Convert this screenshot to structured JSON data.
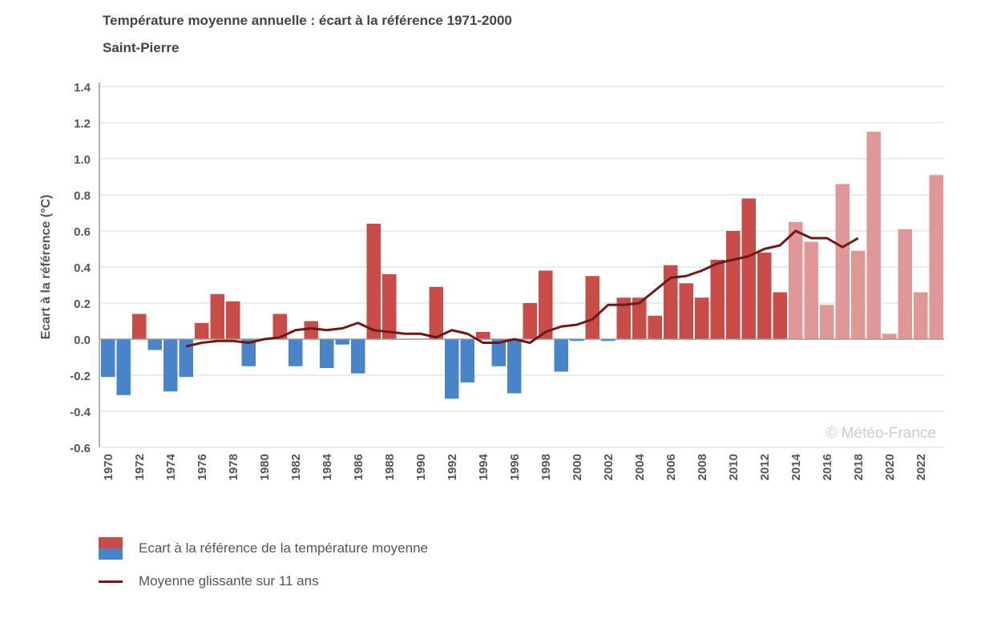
{
  "chart_data": {
    "type": "bar",
    "title": "Température moyenne annuelle : écart à la référence 1971-2000",
    "subtitle": "Saint-Pierre",
    "ylabel": "Ecart à la référence (°C)",
    "xlabel": "",
    "ylim": [
      -0.6,
      1.4
    ],
    "yticks": [
      "-0.6",
      "-0.4",
      "-0.2",
      "0.0",
      "0.2",
      "0.4",
      "0.6",
      "0.8",
      "1.0",
      "1.2",
      "1.4"
    ],
    "grid": true,
    "legend_position": "bottom",
    "watermark": "© Météo-France",
    "x": [
      1970,
      1971,
      1972,
      1973,
      1974,
      1975,
      1976,
      1977,
      1978,
      1979,
      1980,
      1981,
      1982,
      1983,
      1984,
      1985,
      1986,
      1987,
      1988,
      1989,
      1990,
      1991,
      1992,
      1993,
      1994,
      1995,
      1996,
      1997,
      1998,
      1999,
      2000,
      2001,
      2002,
      2003,
      2004,
      2005,
      2006,
      2007,
      2008,
      2009,
      2010,
      2011,
      2012,
      2013,
      2014,
      2015,
      2016,
      2017,
      2018,
      2019,
      2020,
      2021,
      2022,
      2023
    ],
    "series": [
      {
        "name": "Ecart à la référence de la température moyenne",
        "type": "bar",
        "values": [
          -0.21,
          -0.31,
          0.14,
          -0.06,
          -0.29,
          -0.21,
          0.09,
          0.25,
          0.21,
          -0.15,
          0.0,
          0.14,
          -0.15,
          0.1,
          -0.16,
          -0.03,
          -0.19,
          0.64,
          0.36,
          0.0,
          0.0,
          0.29,
          -0.33,
          -0.24,
          0.04,
          -0.15,
          -0.3,
          0.2,
          0.38,
          -0.18,
          -0.01,
          0.35,
          -0.01,
          0.23,
          0.23,
          0.13,
          0.41,
          0.31,
          0.23,
          0.44,
          0.6,
          0.78,
          0.48,
          0.26,
          0.65,
          0.54,
          0.19,
          0.86,
          0.49,
          1.15,
          0.03,
          0.61,
          0.26,
          0.91
        ]
      },
      {
        "name": "Moyenne glissante sur 11 ans",
        "type": "line",
        "x": [
          1975,
          1976,
          1977,
          1978,
          1979,
          1980,
          1981,
          1982,
          1983,
          1984,
          1985,
          1986,
          1987,
          1988,
          1989,
          1990,
          1991,
          1992,
          1993,
          1994,
          1995,
          1996,
          1997,
          1998,
          1999,
          2000,
          2001,
          2002,
          2003,
          2004,
          2005,
          2006,
          2007,
          2008,
          2009,
          2010,
          2011,
          2012,
          2013,
          2014,
          2015,
          2016,
          2017,
          2018
        ],
        "values": [
          -0.04,
          -0.02,
          -0.01,
          -0.01,
          -0.02,
          0.0,
          0.01,
          0.05,
          0.06,
          0.05,
          0.06,
          0.09,
          0.05,
          0.04,
          0.03,
          0.03,
          0.01,
          0.05,
          0.03,
          -0.02,
          -0.02,
          0.0,
          -0.02,
          0.04,
          0.07,
          0.08,
          0.11,
          0.19,
          0.19,
          0.2,
          0.27,
          0.34,
          0.35,
          0.38,
          0.42,
          0.44,
          0.46,
          0.5,
          0.52,
          0.6,
          0.56,
          0.56,
          0.51,
          0.56
        ]
      }
    ],
    "colors": {
      "positive": "#c94c48",
      "negative": "#4a84c8",
      "positive_recent": "#e09797",
      "line": "#6b1a1a"
    },
    "recent_from_year": 2014
  }
}
